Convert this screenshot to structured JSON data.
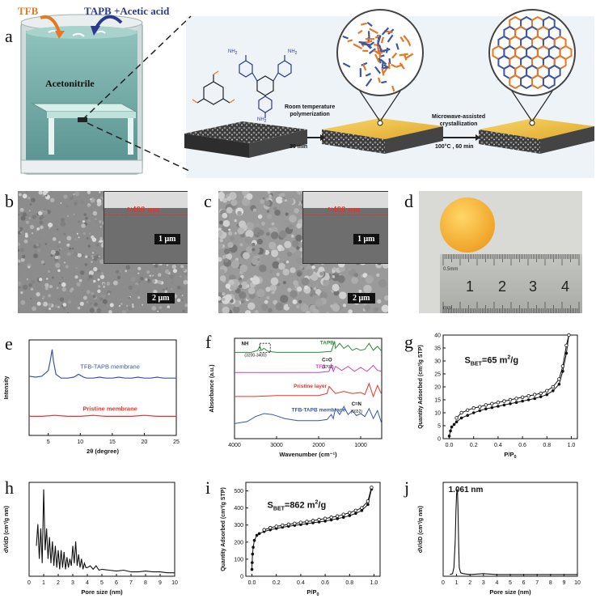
{
  "panel_labels": {
    "a": "a",
    "b": "b",
    "c": "c",
    "d": "d",
    "e": "e",
    "f": "f",
    "g": "g",
    "h": "h",
    "i": "i",
    "j": "j"
  },
  "panel_a": {
    "tfb_label": "TFB",
    "tapb_label": "TAPB +Acetic acid",
    "solvent_label": "Acetonitrile",
    "step1_label_line1": "Room temperature",
    "step1_label_line2": "polymerization",
    "step1_time": "30 min",
    "step2_label_line1": "Microwave-assisted",
    "step2_label_line2": "crystallization",
    "step2_conditions": "100°C , 60 min",
    "nh2_top_left": "NH",
    "nh2_top_right": "NH",
    "nh2_bottom": "NH",
    "sub2": "2"
  },
  "panel_b": {
    "thickness": "≈400 nm",
    "inset_scale": "1 μm",
    "scale": "2 μm"
  },
  "panel_c": {
    "thickness": "≈400 nm",
    "inset_scale": "1 μm",
    "scale": "2 μm"
  },
  "panel_d": {
    "ruler_units": "0.5mm",
    "ruler_mm": "mm",
    "ruler_numbers": [
      "1",
      "2",
      "3",
      "4"
    ]
  },
  "colors": {
    "blue": "#3a56a6",
    "red": "#e8332a",
    "green": "#2f8a3a",
    "magenta": "#c844c4",
    "orange": "#e87722",
    "navy": "#2b3a8c",
    "dark": "#111111"
  },
  "chart_data": [
    {
      "panel": "e",
      "type": "line",
      "xlabel": "2θ (degree)",
      "ylabel": "Intensity",
      "xlim": [
        2,
        25
      ],
      "xticks": [
        "5",
        "10",
        "15",
        "20",
        "25"
      ],
      "series": [
        {
          "name": "TFB-TAPB membrane",
          "x": [
            2,
            3,
            4,
            5,
            5.3,
            5.6,
            5.8,
            6.2,
            7,
            8,
            9,
            9.7,
            10,
            10.5,
            11,
            12,
            13,
            14,
            15,
            16,
            17,
            18,
            19,
            20,
            21,
            22,
            23,
            24,
            25
          ],
          "y": [
            0.62,
            0.61,
            0.62,
            0.68,
            0.78,
            0.9,
            0.78,
            0.64,
            0.6,
            0.6,
            0.61,
            0.64,
            0.63,
            0.61,
            0.6,
            0.6,
            0.61,
            0.6,
            0.6,
            0.61,
            0.6,
            0.6,
            0.61,
            0.6,
            0.6,
            0.61,
            0.6,
            0.6,
            0.6
          ]
        },
        {
          "name": "Pristine membrane",
          "x": [
            2,
            4,
            6,
            8,
            10,
            12,
            14,
            16,
            18,
            20,
            22,
            24,
            25
          ],
          "y": [
            0.2,
            0.2,
            0.21,
            0.2,
            0.2,
            0.21,
            0.2,
            0.2,
            0.2,
            0.21,
            0.2,
            0.2,
            0.2
          ]
        }
      ]
    },
    {
      "panel": "f",
      "type": "line",
      "xlabel": "Wavenumber (cm⁻¹)",
      "ylabel": "Absorbance (a.u.)",
      "xlim": [
        4000,
        500
      ],
      "xticks": [
        "4000",
        "3000",
        "2000",
        "1000"
      ],
      "annotations": [
        "NH",
        "(3200-3400)",
        "C=O",
        "(1702)",
        "C=N",
        "(1652)"
      ],
      "series": [
        {
          "name": "TAPB",
          "x": [
            4000,
            3600,
            3450,
            3400,
            3360,
            3300,
            3200,
            3000,
            2500,
            2000,
            1700,
            1620,
            1600,
            1500,
            1400,
            1300,
            1200,
            1100,
            1000,
            900,
            800,
            700,
            600,
            500
          ],
          "y": [
            0.86,
            0.86,
            0.88,
            0.92,
            0.88,
            0.9,
            0.87,
            0.86,
            0.86,
            0.86,
            0.87,
            0.97,
            0.9,
            0.95,
            0.9,
            0.93,
            0.88,
            0.9,
            0.88,
            0.89,
            0.95,
            0.88,
            0.92,
            0.87
          ]
        },
        {
          "name": "TFB",
          "x": [
            4000,
            3000,
            2000,
            1750,
            1702,
            1650,
            1600,
            1450,
            1300,
            1150,
            1000,
            850,
            700,
            600,
            500
          ],
          "y": [
            0.66,
            0.66,
            0.66,
            0.67,
            0.74,
            0.67,
            0.72,
            0.68,
            0.72,
            0.67,
            0.71,
            0.67,
            0.73,
            0.68,
            0.67
          ]
        },
        {
          "name": "Pristine layer",
          "x": [
            4000,
            3500,
            3000,
            2500,
            2000,
            1800,
            1750,
            1600,
            1400,
            1200,
            1000,
            900,
            800,
            700,
            600,
            500
          ],
          "y": [
            0.42,
            0.42,
            0.43,
            0.43,
            0.43,
            0.45,
            0.52,
            0.45,
            0.47,
            0.45,
            0.46,
            0.44,
            0.55,
            0.42,
            0.53,
            0.44
          ]
        },
        {
          "name": "TFB-TAPB membrane",
          "x": [
            4000,
            3700,
            3500,
            3300,
            3100,
            2800,
            2500,
            2000,
            1800,
            1700,
            1652,
            1600,
            1500,
            1400,
            1300,
            1200,
            1100,
            1000,
            900,
            800,
            700,
            600,
            500
          ],
          "y": [
            0.15,
            0.17,
            0.22,
            0.25,
            0.24,
            0.2,
            0.18,
            0.18,
            0.19,
            0.24,
            0.2,
            0.3,
            0.24,
            0.32,
            0.24,
            0.28,
            0.23,
            0.25,
            0.22,
            0.3,
            0.2,
            0.28,
            0.15
          ]
        }
      ]
    },
    {
      "panel": "g",
      "type": "scatter",
      "xlabel": "P/P",
      "xlabel_sub": "0",
      "ylabel": "Quantity Adsorbed (cm³/g STP)",
      "xlim": [
        -0.05,
        1.05
      ],
      "ylim": [
        0,
        40
      ],
      "xticks": [
        "0.0",
        "0.2",
        "0.4",
        "0.6",
        "0.8",
        "1.0"
      ],
      "yticks": [
        "0",
        "5",
        "10",
        "15",
        "20",
        "25",
        "30",
        "35",
        "40"
      ],
      "annotation": "S",
      "annotation_sub": "BET",
      "annotation_value": "=65 m",
      "annotation_sup": "2",
      "annotation_unit": "/g",
      "series": [
        {
          "name": "adsorption",
          "x": [
            0.0,
            0.01,
            0.02,
            0.04,
            0.06,
            0.1,
            0.15,
            0.2,
            0.25,
            0.3,
            0.35,
            0.4,
            0.45,
            0.5,
            0.55,
            0.6,
            0.65,
            0.7,
            0.75,
            0.8,
            0.85,
            0.9,
            0.93,
            0.96,
            0.98
          ],
          "y": [
            1,
            3,
            4.5,
            5.5,
            6.5,
            8,
            9,
            10,
            10.8,
            11.5,
            12,
            12.5,
            13,
            13.5,
            14,
            14.5,
            15,
            15.5,
            16.2,
            17,
            18.5,
            21,
            26,
            33,
            40
          ]
        },
        {
          "name": "desorption",
          "x": [
            0.98,
            0.96,
            0.93,
            0.9,
            0.85,
            0.8,
            0.75,
            0.7,
            0.65,
            0.6,
            0.55,
            0.5,
            0.45,
            0.4,
            0.35,
            0.3,
            0.25,
            0.2,
            0.15,
            0.1,
            0.06
          ],
          "y": [
            40,
            36,
            28,
            23,
            20,
            18.5,
            17.5,
            17,
            16.5,
            16,
            15.5,
            15,
            14.5,
            14,
            13.5,
            13,
            12.3,
            11.8,
            11,
            10,
            8
          ]
        }
      ]
    },
    {
      "panel": "h",
      "type": "line",
      "xlabel": "Pore size (nm)",
      "ylabel": "dV/dD (cm³/g nm)",
      "xlim": [
        0,
        10
      ],
      "xticks": [
        "0",
        "1",
        "2",
        "3",
        "4",
        "5",
        "6",
        "7",
        "8",
        "9",
        "10"
      ],
      "series": [
        {
          "name": "",
          "x": [
            0.5,
            0.6,
            0.7,
            0.8,
            0.9,
            1.0,
            1.1,
            1.2,
            1.3,
            1.4,
            1.5,
            1.6,
            1.7,
            1.8,
            1.9,
            2.0,
            2.1,
            2.2,
            2.3,
            2.4,
            2.5,
            2.6,
            2.7,
            2.8,
            2.9,
            3.0,
            3.1,
            3.2,
            3.3,
            3.4,
            3.5,
            3.6,
            3.7,
            3.8,
            3.9,
            4.0,
            4.2,
            4.4,
            4.6,
            4.8,
            5.0,
            5.5,
            6,
            6.5,
            7,
            7.5,
            8,
            8.5,
            9,
            9.5,
            10
          ],
          "y": [
            0.35,
            0.6,
            0.2,
            0.55,
            0.15,
            1.0,
            0.3,
            0.55,
            0.2,
            0.45,
            0.15,
            0.4,
            0.12,
            0.35,
            0.1,
            0.3,
            0.08,
            0.3,
            0.1,
            0.28,
            0.08,
            0.22,
            0.1,
            0.2,
            0.12,
            0.35,
            0.15,
            0.4,
            0.12,
            0.25,
            0.1,
            0.2,
            0.08,
            0.15,
            0.1,
            0.1,
            0.12,
            0.08,
            0.12,
            0.07,
            0.08,
            0.07,
            0.06,
            0.07,
            0.05,
            0.05,
            0.06,
            0.05,
            0.05,
            0.04,
            0.04
          ]
        }
      ]
    },
    {
      "panel": "i",
      "type": "scatter",
      "xlabel": "P/P",
      "xlabel_sub": "0",
      "ylabel": "Quantity Adsorbed (cm³/g STP)",
      "xlim": [
        -0.05,
        1.05
      ],
      "ylim": [
        0,
        550
      ],
      "xticks": [
        "0.0",
        "0.2",
        "0.4",
        "0.6",
        "0.8",
        "1.0"
      ],
      "yticks": [
        "0",
        "100",
        "200",
        "300",
        "400",
        "500"
      ],
      "annotation": "S",
      "annotation_sub": "BET",
      "annotation_value": "=862 m",
      "annotation_sup": "2",
      "annotation_unit": "/g",
      "series": [
        {
          "name": "adsorption",
          "x": [
            0.0,
            0.002,
            0.005,
            0.01,
            0.02,
            0.04,
            0.06,
            0.1,
            0.15,
            0.2,
            0.25,
            0.3,
            0.35,
            0.4,
            0.45,
            0.5,
            0.55,
            0.6,
            0.65,
            0.7,
            0.75,
            0.8,
            0.85,
            0.9,
            0.95,
            0.98
          ],
          "y": [
            40,
            80,
            130,
            170,
            210,
            240,
            250,
            262,
            272,
            280,
            287,
            293,
            298,
            303,
            308,
            313,
            318,
            323,
            330,
            337,
            345,
            355,
            368,
            385,
            420,
            510
          ]
        },
        {
          "name": "desorption",
          "x": [
            0.98,
            0.95,
            0.9,
            0.85,
            0.8,
            0.75,
            0.7,
            0.65,
            0.6,
            0.55,
            0.5,
            0.45,
            0.4,
            0.35,
            0.3,
            0.25,
            0.2,
            0.15,
            0.1
          ],
          "y": [
            520,
            440,
            400,
            385,
            372,
            362,
            352,
            345,
            338,
            332,
            326,
            320,
            315,
            309,
            304,
            298,
            292,
            284,
            272
          ]
        }
      ]
    },
    {
      "panel": "j",
      "type": "line",
      "xlabel": "Pore size (nm)",
      "ylabel": "dV/dD (cm³/g nm)",
      "xlim": [
        0,
        10
      ],
      "xticks": [
        "0",
        "1",
        "2",
        "3",
        "4",
        "5",
        "6",
        "7",
        "8",
        "9",
        "10"
      ],
      "annotation": "1.061 nm",
      "series": [
        {
          "name": "",
          "x": [
            0.5,
            0.7,
            0.8,
            0.9,
            0.95,
            1.0,
            1.06,
            1.1,
            1.15,
            1.2,
            1.3,
            1.5,
            2,
            3,
            4,
            5,
            6,
            7,
            8,
            9,
            10
          ],
          "y": [
            0.02,
            0.03,
            0.1,
            0.4,
            0.75,
            0.95,
            1.0,
            0.8,
            0.4,
            0.1,
            0.04,
            0.03,
            0.02,
            0.03,
            0.02,
            0.02,
            0.02,
            0.02,
            0.02,
            0.02,
            0.02
          ]
        }
      ]
    }
  ]
}
